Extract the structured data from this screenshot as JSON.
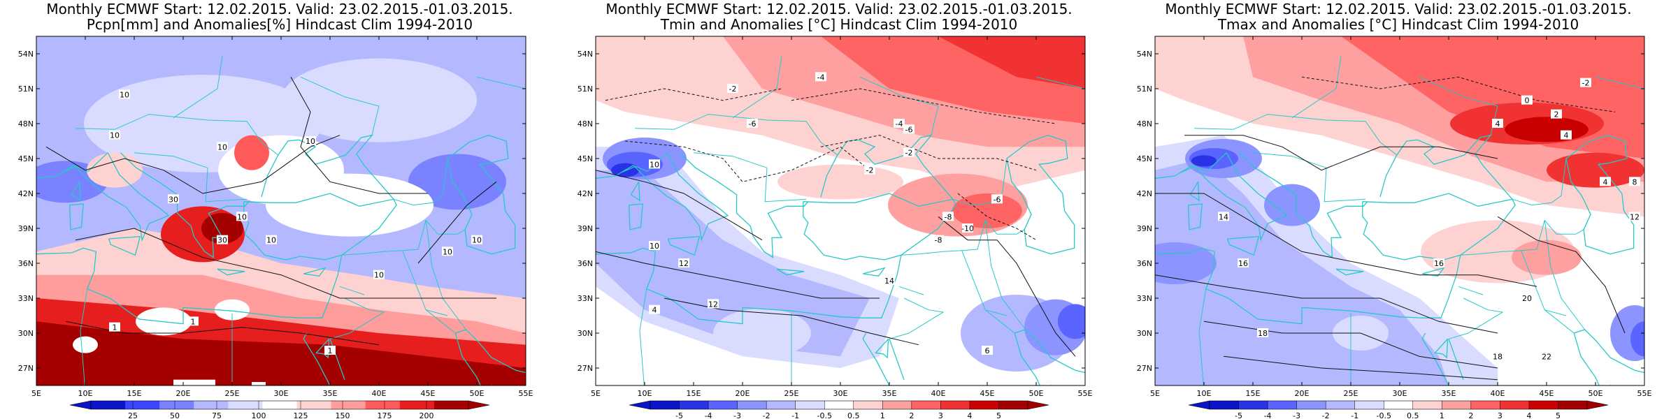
{
  "panels": [
    {
      "title_line1": "Monthly ECMWF Start: 12.02.2015. Valid: 23.02.2015.-01.03.2015.",
      "title_line2": "Pcpn[mm] and Anomalies[%] Hindcast Clim 1994-2010",
      "colorbar_labels": [
        "25",
        "50",
        "75",
        "100",
        "125",
        "150",
        "175",
        "200"
      ],
      "colorbar_colors": [
        "#0a14c8",
        "#3c46ff",
        "#7a82ff",
        "#b4b9ff",
        "#dadcff",
        "#ffffff",
        "#ffd2d2",
        "#ff9c9c",
        "#ff5a5a",
        "#e61e1e",
        "#a50000"
      ],
      "contour_labels": [
        "10",
        "10",
        "10",
        "10",
        "30",
        "30",
        "10",
        "10",
        "10",
        "10",
        "10",
        "1",
        "1",
        "1"
      ]
    },
    {
      "title_line1": "Monthly ECMWF Start: 12.02.2015. Valid: 23.02.2015.-01.03.2015.",
      "title_line2": "Tmin and Anomalies [°C] Hindcast Clim 1994-2010",
      "colorbar_labels": [
        "-5",
        "-4",
        "-3",
        "-2",
        "-1",
        "-0.5",
        "0.5",
        "1",
        "2",
        "3",
        "4",
        "5"
      ],
      "colorbar_colors": [
        "#0a14c8",
        "#2832e6",
        "#5a64ff",
        "#8c94ff",
        "#b4b9ff",
        "#dadcff",
        "#ffffff",
        "#ffd2d2",
        "#ffa0a0",
        "#ff6464",
        "#f03232",
        "#c80000",
        "#a00000"
      ],
      "contour_labels": [
        "-2",
        "-4",
        "-4",
        "-6",
        "-6",
        "-2",
        "-2",
        "10",
        "10",
        "12",
        "12",
        "14",
        "-8",
        "-10",
        "-6",
        "-8",
        "4",
        "6"
      ]
    },
    {
      "title_line1": "Monthly ECMWF Start: 12.02.2015. Valid: 23.02.2015.-01.03.2015.",
      "title_line2": "Tmax and Anomalies [°C] Hindcast Clim 1994-2010",
      "colorbar_labels": [
        "-5",
        "-4",
        "-3",
        "-2",
        "-1",
        "-0.5",
        "0.5",
        "1",
        "2",
        "3",
        "4",
        "5"
      ],
      "colorbar_colors": [
        "#0a14c8",
        "#2832e6",
        "#5a64ff",
        "#8c94ff",
        "#b4b9ff",
        "#dadcff",
        "#ffffff",
        "#ffd2d2",
        "#ffa0a0",
        "#ff6464",
        "#f03232",
        "#c80000",
        "#a00000"
      ],
      "contour_labels": [
        "-2",
        "0",
        "2",
        "4",
        "4",
        "14",
        "16",
        "16",
        "18",
        "18",
        "20",
        "22",
        "4",
        "8",
        "12"
      ]
    }
  ],
  "map": {
    "lat_labels": [
      "54N",
      "51N",
      "48N",
      "45N",
      "42N",
      "39N",
      "36N",
      "33N",
      "30N",
      "27N"
    ],
    "lon_labels": [
      "5E",
      "10E",
      "15E",
      "20E",
      "25E",
      "30E",
      "35E",
      "40E",
      "45E",
      "50E",
      "55E"
    ]
  }
}
